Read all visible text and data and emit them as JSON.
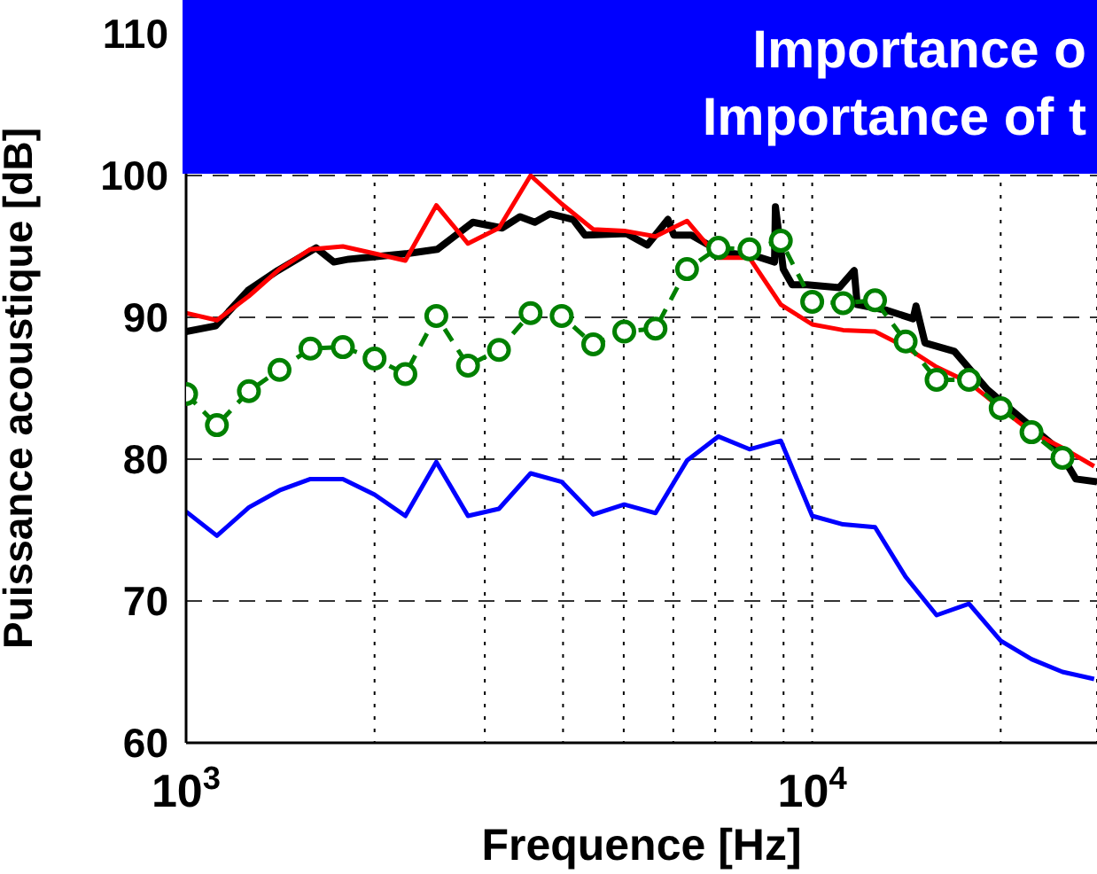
{
  "chart_data": {
    "type": "line",
    "xlabel": "Frequence [Hz]",
    "ylabel": "Puissance acoustique [dB]",
    "annotations": [
      "Importance o",
      "Importance of t"
    ],
    "log": "x",
    "grid": true,
    "xlim": [
      1000,
      28500
    ],
    "ylim": [
      60,
      110
    ],
    "xticks": [
      {
        "value": 1000,
        "label": "10$^{3}$"
      },
      {
        "value": 2000,
        "label": null
      },
      {
        "value": 3000,
        "label": null
      },
      {
        "value": 4000,
        "label": null
      },
      {
        "value": 5000,
        "label": null
      },
      {
        "value": 6000,
        "label": null
      },
      {
        "value": 7000,
        "label": null
      },
      {
        "value": 8000,
        "label": null
      },
      {
        "value": 9000,
        "label": null
      },
      {
        "value": 10000,
        "label": "10$^{4}$"
      },
      {
        "value": 20000,
        "label": null
      }
    ],
    "yticks": [
      60,
      70,
      80,
      90,
      100,
      110
    ],
    "x": [
      1000,
      1120,
      1260,
      1410,
      1580,
      1780,
      2000,
      2240,
      2510,
      2820,
      3160,
      3550,
      3980,
      4470,
      5010,
      5620,
      6310,
      7080,
      7940,
      8910,
      10000,
      11200,
      12600,
      14100,
      15800,
      17800,
      20000,
      22400,
      25100,
      28200
    ],
    "series": [
      {
        "color": "#000000",
        "line_style": "solid",
        "marker": "none",
        "x": [
          1000,
          1115,
          1256,
          1401,
          1613,
          1722,
          1819,
          2259,
          2520,
          2871,
          3199,
          3415,
          3606,
          3808,
          4150,
          4337,
          5050,
          5453,
          5883,
          6011,
          6412,
          7158,
          8150,
          8706,
          8735,
          8990,
          9290,
          9810,
          11050,
          11670,
          11800,
          13150,
          14490,
          14650,
          15140,
          16870,
          19050,
          21680,
          24710,
          26370,
          28500
        ],
        "values": [
          89.0,
          89.4,
          91.9,
          93.3,
          94.9,
          93.9,
          94.1,
          94.5,
          94.8,
          96.7,
          96.3,
          97.1,
          96.7,
          97.3,
          96.9,
          95.8,
          95.9,
          95.1,
          96.9,
          95.8,
          95.8,
          94.6,
          94.3,
          93.9,
          97.8,
          93.4,
          92.3,
          92.3,
          92.1,
          93.3,
          90.9,
          90.5,
          89.9,
          90.8,
          88.2,
          87.6,
          84.9,
          82.8,
          80.7,
          78.6,
          78.4
        ]
      },
      {
        "color": "#ff0000",
        "line_style": "solid",
        "marker": "none",
        "values": [
          90.3,
          89.8,
          91.5,
          93.4,
          94.8,
          95.0,
          94.5,
          94.0,
          97.9,
          95.2,
          96.3,
          100.0,
          98.0,
          96.2,
          96.1,
          95.7,
          96.8,
          94.2,
          94.2,
          90.9,
          89.5,
          89.1,
          89.0,
          87.9,
          86.5,
          85.4,
          83.6,
          81.9,
          80.8,
          79.5
        ]
      },
      {
        "color": "#008000",
        "line_style": "dashed",
        "marker": "circle",
        "values": [
          84.6,
          82.4,
          84.8,
          86.3,
          87.8,
          87.9,
          87.1,
          86.0,
          90.1,
          86.6,
          87.7,
          90.3,
          90.1,
          88.1,
          89.0,
          89.2,
          93.4,
          94.9,
          94.8,
          95.4,
          91.1,
          91.0,
          91.2,
          88.3,
          85.6,
          85.6,
          83.6,
          81.9,
          80.1,
          null
        ]
      },
      {
        "color": "#0000ff",
        "line_style": "solid",
        "marker": "none",
        "values": [
          76.3,
          74.6,
          76.6,
          77.8,
          78.6,
          78.6,
          77.5,
          76.0,
          79.8,
          76.0,
          76.5,
          79.0,
          78.4,
          76.1,
          76.8,
          76.2,
          79.9,
          81.6,
          80.7,
          81.3,
          76.0,
          75.4,
          75.2,
          71.7,
          69.0,
          69.8,
          67.2,
          65.9,
          65.0,
          64.5
        ]
      }
    ]
  }
}
